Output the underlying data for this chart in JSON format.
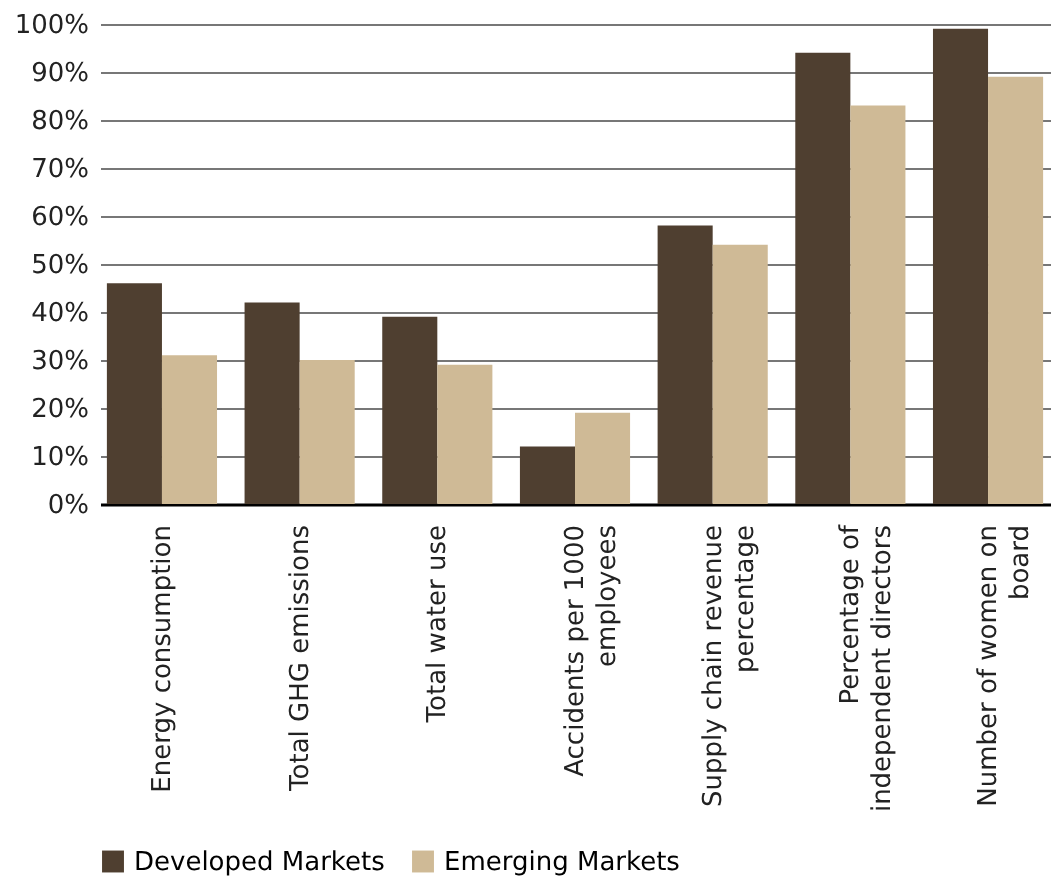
{
  "chart_data": {
    "type": "bar",
    "categories": [
      "Energy consumption",
      "Total GHG emissions",
      "Total water use",
      "Accidents per 1000 employees",
      "Supply chain revenue percentage",
      "Percentage of independent directors",
      "Number of women on board"
    ],
    "series": [
      {
        "name": "Developed Markets",
        "color": "#4f3f30",
        "values": [
          46,
          42,
          39,
          12,
          58,
          94,
          99
        ]
      },
      {
        "name": "Emerging Markets",
        "color": "#cfba96",
        "values": [
          31,
          30,
          29,
          19,
          54,
          83,
          89
        ]
      }
    ],
    "ylim": [
      0,
      100
    ],
    "yticks": [
      {
        "value": 0,
        "label": "0%"
      },
      {
        "value": 10,
        "label": "10%"
      },
      {
        "value": 20,
        "label": "20%"
      },
      {
        "value": 30,
        "label": "30%"
      },
      {
        "value": 40,
        "label": "40%"
      },
      {
        "value": 50,
        "label": "50%"
      },
      {
        "value": 60,
        "label": "60%"
      },
      {
        "value": 70,
        "label": "70%"
      },
      {
        "value": 80,
        "label": "80%"
      },
      {
        "value": 90,
        "label": "90%"
      },
      {
        "value": 100,
        "label": "100%"
      }
    ],
    "grid": "y",
    "legend": "bottom"
  }
}
